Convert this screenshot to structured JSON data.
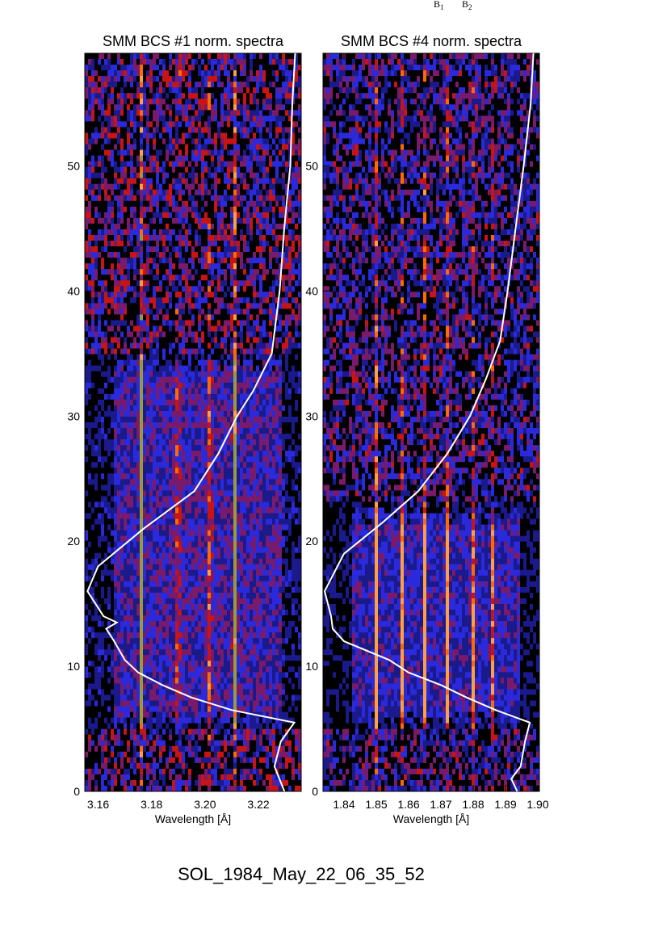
{
  "chart_data": [
    {
      "type": "heatmap",
      "title": "SMM BCS #1 norm. spectra",
      "xlabel": "Wavelength [Å]",
      "ylabel": "",
      "xlim": [
        3.155,
        3.236
      ],
      "ylim": [
        0,
        59
      ],
      "x_ticks": [
        3.16,
        3.18,
        3.2,
        3.22
      ],
      "x_tick_labels": [
        "3.16",
        "3.18",
        "3.20",
        "3.22"
      ],
      "y_ticks": [
        0,
        10,
        20,
        30,
        40,
        50
      ],
      "y_tick_labels": [
        "0",
        "10",
        "20",
        "30",
        "40",
        "50"
      ],
      "grid": false,
      "colormap": [
        "#000000",
        "#1a1a8c",
        "#2a2adc",
        "#7a1a6a",
        "#c81414",
        "#ff6a00",
        "#ffa040",
        "#9a9a3a"
      ],
      "spectral_lines_wavelength": [
        3.176,
        3.19,
        3.202,
        3.211
      ],
      "spectral_line_strength": [
        1.0,
        0.75,
        0.7,
        0.9
      ],
      "bright_band_time_range": [
        5,
        35
      ],
      "overlay_curve": {
        "name": "",
        "color": "#ffffff",
        "points": [
          [
            0,
            3.23
          ],
          [
            2,
            3.226
          ],
          [
            4,
            3.228
          ],
          [
            5.5,
            3.233
          ],
          [
            6.5,
            3.21
          ],
          [
            7.5,
            3.195
          ],
          [
            8.5,
            3.184
          ],
          [
            9.5,
            3.175
          ],
          [
            10.5,
            3.17
          ],
          [
            12,
            3.166
          ],
          [
            13,
            3.163
          ],
          [
            13.5,
            3.167
          ],
          [
            14,
            3.162
          ],
          [
            16,
            3.156
          ],
          [
            18,
            3.16
          ],
          [
            21,
            3.177
          ],
          [
            24,
            3.196
          ],
          [
            27,
            3.205
          ],
          [
            30,
            3.212
          ],
          [
            32,
            3.218
          ],
          [
            35,
            3.225
          ],
          [
            40,
            3.228
          ],
          [
            45,
            3.23
          ],
          [
            50,
            3.232
          ],
          [
            55,
            3.233
          ],
          [
            59,
            3.234
          ]
        ]
      }
    },
    {
      "type": "heatmap",
      "title": "SMM BCS #4 norm. spectra",
      "xlabel": "Wavelength [Å]",
      "ylabel": "",
      "xlim": [
        1.8335,
        1.9005
      ],
      "ylim": [
        0,
        59
      ],
      "x_ticks": [
        1.84,
        1.85,
        1.86,
        1.87,
        1.88,
        1.89,
        1.9
      ],
      "x_tick_labels": [
        "1.84",
        "1.85",
        "1.86",
        "1.87",
        "1.88",
        "1.89",
        "1.90"
      ],
      "y_ticks": [
        0,
        10,
        20,
        30,
        40,
        50
      ],
      "y_tick_labels": [
        "0",
        "10",
        "20",
        "30",
        "40",
        "50"
      ],
      "grid": false,
      "colormap": [
        "#000000",
        "#1a1a8c",
        "#2a2adc",
        "#7a1a6a",
        "#c81414",
        "#ff6a00",
        "#ffa040"
      ],
      "spectral_lines_wavelength": [
        1.85,
        1.858,
        1.865,
        1.872,
        1.88,
        1.886
      ],
      "spectral_line_strength": [
        1.0,
        0.65,
        0.75,
        0.7,
        0.55,
        0.45
      ],
      "bright_band_time_range": [
        5,
        23
      ],
      "overlay_curve": {
        "name": "",
        "color": "#ffffff",
        "points": [
          [
            0,
            1.8935
          ],
          [
            1,
            1.8915
          ],
          [
            2,
            1.895
          ],
          [
            4,
            1.896
          ],
          [
            5.5,
            1.8975
          ],
          [
            6.5,
            1.887
          ],
          [
            7.5,
            1.878
          ],
          [
            8.5,
            1.87
          ],
          [
            9.5,
            1.86
          ],
          [
            10.5,
            1.854
          ],
          [
            12,
            1.84
          ],
          [
            13,
            1.8365
          ],
          [
            14,
            1.836
          ],
          [
            16,
            1.834
          ],
          [
            19,
            1.84
          ],
          [
            21.5,
            1.852
          ],
          [
            24,
            1.863
          ],
          [
            27,
            1.872
          ],
          [
            30,
            1.879
          ],
          [
            33,
            1.884
          ],
          [
            36,
            1.888
          ],
          [
            40,
            1.891
          ],
          [
            45,
            1.893
          ],
          [
            50,
            1.8955
          ],
          [
            55,
            1.8975
          ],
          [
            59,
            1.899
          ]
        ]
      }
    }
  ],
  "footer": {
    "event_label": "SOL_1984_May_22_06_35_52"
  },
  "top_note": {
    "label_1": "B",
    "sub_1": "1",
    "label_2": "B",
    "sub_2": "2"
  }
}
